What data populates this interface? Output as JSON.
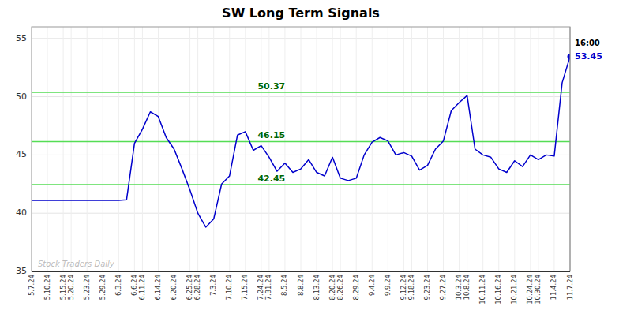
{
  "chart_data": {
    "type": "line",
    "title": "SW Long Term Signals",
    "color": "#0000cc",
    "grid": true,
    "ylim": [
      35,
      56
    ],
    "yticks": [
      35,
      40,
      45,
      50,
      55
    ],
    "hlines": [
      42.45,
      46.15,
      50.37
    ],
    "annotations": [
      "16:00"
    ],
    "watermark": "Stock Traders Daily",
    "categories": [
      "5.7.24",
      null,
      "5.10.24",
      null,
      "5.15.24",
      "5.20.24",
      null,
      "5.23.24",
      null,
      "5.29.24",
      null,
      "6.3.24",
      null,
      "6.6.24",
      "6.11.24",
      null,
      "6.14.24",
      null,
      "6.20.24",
      null,
      "6.25.24",
      "6.28.24",
      null,
      "7.3.24",
      null,
      "7.10.24",
      null,
      "7.15.24",
      null,
      "7.24.24",
      "7.31.24",
      null,
      "8.5.24",
      null,
      "8.8.24",
      null,
      "8.13.24",
      null,
      "8.20.24",
      "8.26.24",
      null,
      "8.29.24",
      null,
      "9.4.24",
      null,
      "9.9.24",
      null,
      "9.12.24",
      "9.18.24",
      null,
      "9.23.24",
      null,
      "9.27.24",
      null,
      "10.3.24",
      "10.8.24",
      null,
      "10.11.24",
      null,
      "10.16.24",
      null,
      "10.21.24",
      null,
      "10.24.24",
      "10.30.24",
      null,
      "11.4.24",
      null,
      "11.7.24"
    ],
    "values": [
      41.1,
      41.1,
      41.1,
      41.1,
      41.1,
      41.1,
      41.1,
      41.1,
      41.1,
      41.1,
      41.1,
      41.1,
      41.15,
      46.0,
      47.2,
      48.7,
      48.3,
      46.5,
      45.5,
      43.8,
      42.0,
      40.0,
      38.8,
      39.5,
      42.5,
      43.2,
      46.7,
      47.0,
      45.4,
      45.8,
      44.8,
      43.6,
      44.3,
      43.5,
      43.8,
      44.6,
      43.5,
      43.2,
      44.8,
      43.0,
      42.8,
      43.0,
      45.0,
      46.1,
      46.5,
      46.2,
      45.0,
      45.2,
      44.9,
      43.7,
      44.1,
      45.5,
      46.2,
      48.8,
      49.5,
      50.1,
      45.5,
      45.0,
      44.8,
      43.8,
      43.5,
      44.5,
      44.0,
      45.0,
      44.6,
      45.0,
      44.9,
      51.2,
      53.45
    ]
  }
}
